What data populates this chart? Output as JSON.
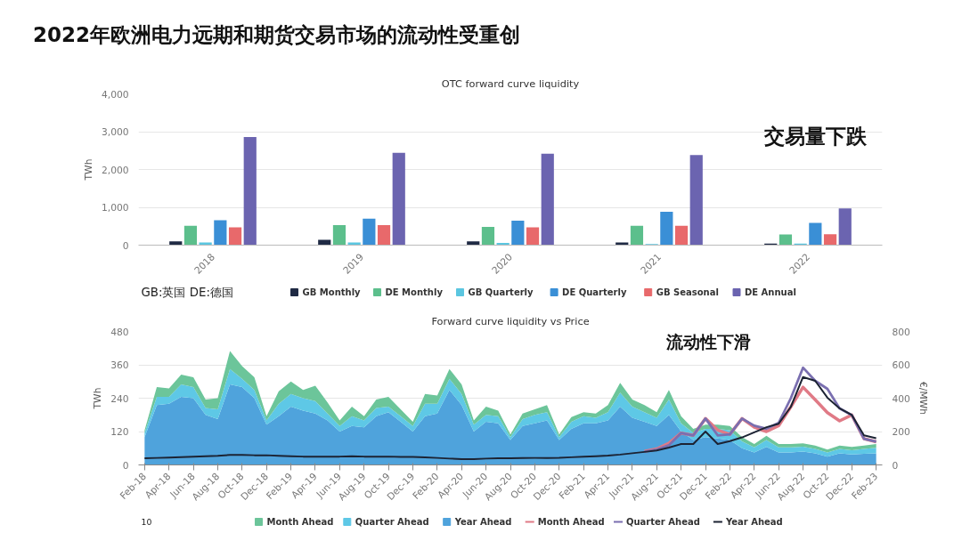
{
  "chart_data": [
    {
      "type": "bar",
      "title": "OTC forward curve liquidity",
      "ylabel": "TWh",
      "categories": [
        "2018",
        "2019",
        "2020",
        "2021",
        "2022"
      ],
      "series": [
        {
          "name": "GB Monthly",
          "color": "#1f2a44",
          "values": [
            100,
            140,
            100,
            70,
            40
          ]
        },
        {
          "name": "DE Monthly",
          "color": "#5cbf8c",
          "values": [
            510,
            530,
            480,
            510,
            280
          ]
        },
        {
          "name": "GB Quarterly",
          "color": "#5bc6e0",
          "values": [
            70,
            70,
            60,
            30,
            40
          ]
        },
        {
          "name": "DE Quarterly",
          "color": "#3a8fd6",
          "values": [
            660,
            700,
            650,
            880,
            590
          ]
        },
        {
          "name": "GB Seasonal",
          "color": "#e8696b",
          "values": [
            470,
            530,
            470,
            510,
            290
          ]
        },
        {
          "name": "DE Annual",
          "color": "#6b64b0",
          "values": [
            2860,
            2440,
            2420,
            2380,
            970
          ]
        }
      ],
      "ylim": [
        0,
        4000
      ],
      "yticks": [
        0,
        {
          "value": 1000,
          "label": "1,000"
        },
        {
          "value": 2000,
          "label": "2,000"
        },
        {
          "value": 3000,
          "label": "3,000"
        },
        {
          "value": 4000,
          "label": "4,000"
        }
      ],
      "grid": "y",
      "legend": "bottom",
      "annotations": [
        "2022年欧洲电力远期和期货交易市场的流动性受重创",
        "GB:英国  DE:德国",
        "交易量下跌"
      ]
    },
    {
      "type": "area",
      "stacked": true,
      "title": "Forward curve liquidity vs Price",
      "ylabel": "TWh",
      "y2label": "€/MWh",
      "categories": [
        "Feb-18",
        null,
        "Apr-18",
        null,
        "Jun-18",
        null,
        "Aug-18",
        null,
        "Oct-18",
        null,
        "Dec-18",
        null,
        "Feb-19",
        null,
        "Apr-19",
        null,
        "Jun-19",
        null,
        "Aug-19",
        null,
        "Oct-19",
        null,
        "Dec-19",
        null,
        "Feb-20",
        null,
        "Apr-20",
        null,
        "Jun-20",
        null,
        "Aug-20",
        null,
        "Oct-20",
        null,
        "Dec-20",
        null,
        "Feb-21",
        null,
        "Apr-21",
        null,
        "Jun-21",
        null,
        "Aug-21",
        null,
        "Oct-21",
        null,
        "Dec-21",
        null,
        "Feb-22",
        null,
        "Apr-22",
        null,
        "Jun-22",
        null,
        "Aug-22",
        null,
        "Oct-22",
        null,
        "Dec-22",
        null,
        "Feb-23"
      ],
      "series": [
        {
          "name": "Year Ahead",
          "type": "area",
          "color": "#4fa3dc",
          "values": [
            100,
            215,
            220,
            245,
            240,
            180,
            165,
            290,
            280,
            240,
            145,
            175,
            210,
            195,
            185,
            160,
            120,
            140,
            135,
            175,
            190,
            155,
            120,
            175,
            185,
            270,
            215,
            120,
            155,
            150,
            90,
            140,
            150,
            160,
            90,
            130,
            150,
            150,
            160,
            210,
            170,
            155,
            140,
            180,
            120,
            90,
            100,
            95,
            90,
            60,
            45,
            65,
            45,
            45,
            48,
            42,
            30,
            42,
            38,
            40,
            42
          ]
        },
        {
          "name": "Quarter Ahead",
          "type": "area",
          "color": "#5ec8e6",
          "values": [
            15,
            30,
            25,
            45,
            40,
            25,
            35,
            55,
            30,
            30,
            15,
            45,
            45,
            45,
            45,
            25,
            20,
            35,
            25,
            30,
            20,
            20,
            20,
            45,
            35,
            40,
            40,
            25,
            25,
            25,
            10,
            25,
            30,
            30,
            10,
            25,
            25,
            20,
            30,
            50,
            40,
            35,
            30,
            55,
            30,
            25,
            30,
            35,
            35,
            25,
            18,
            25,
            18,
            18,
            18,
            16,
            15,
            16,
            15,
            18,
            20
          ]
        },
        {
          "name": "Month Ahead",
          "type": "area",
          "color": "#6cc59a",
          "values": [
            10,
            35,
            30,
            35,
            35,
            30,
            40,
            65,
            45,
            45,
            15,
            45,
            45,
            30,
            55,
            40,
            20,
            35,
            15,
            30,
            35,
            25,
            15,
            35,
            30,
            35,
            35,
            15,
            30,
            20,
            10,
            20,
            20,
            25,
            10,
            17,
            15,
            15,
            25,
            35,
            25,
            25,
            20,
            35,
            25,
            15,
            15,
            15,
            15,
            15,
            12,
            15,
            12,
            12,
            12,
            12,
            10,
            12,
            12,
            12,
            13
          ]
        },
        {
          "name": "Month Ahead",
          "type": "line",
          "axis": "y2",
          "color": "#e07a86",
          "values": [
            null,
            null,
            null,
            null,
            null,
            null,
            null,
            null,
            null,
            null,
            null,
            null,
            null,
            null,
            null,
            null,
            null,
            null,
            null,
            null,
            null,
            null,
            null,
            null,
            null,
            null,
            null,
            null,
            null,
            null,
            null,
            null,
            null,
            null,
            null,
            null,
            null,
            null,
            null,
            null,
            null,
            82,
            96,
            130,
            191,
            177,
            278,
            209,
            183,
            278,
            226,
            200,
            235,
            348,
            466,
            391,
            313,
            264,
            299,
            157,
            139
          ]
        },
        {
          "name": "Quarter Ahead",
          "type": "line",
          "axis": "y2",
          "color": "#7a6fb0",
          "values": [
            null,
            null,
            null,
            null,
            null,
            null,
            null,
            null,
            null,
            null,
            null,
            null,
            null,
            null,
            null,
            null,
            null,
            null,
            null,
            null,
            null,
            null,
            null,
            null,
            null,
            null,
            null,
            null,
            null,
            null,
            null,
            null,
            null,
            null,
            null,
            null,
            null,
            null,
            null,
            null,
            null,
            80,
            92,
            118,
            191,
            177,
            278,
            177,
            183,
            278,
            235,
            217,
            252,
            400,
            583,
            504,
            456,
            339,
            299,
            157,
            139
          ]
        },
        {
          "name": "Year Ahead",
          "type": "line",
          "axis": "y2",
          "color": "#1c2333",
          "values": [
            40,
            42,
            44,
            47,
            49,
            52,
            55,
            60,
            60,
            58,
            58,
            55,
            52,
            50,
            50,
            50,
            50,
            52,
            50,
            50,
            50,
            48,
            48,
            45,
            42,
            38,
            35,
            35,
            38,
            40,
            40,
            41,
            42,
            42,
            43,
            46,
            49,
            52,
            56,
            62,
            70,
            78,
            87,
            104,
            125,
            125,
            200,
            125,
            143,
            165,
            195,
            226,
            247,
            348,
            527,
            504,
            403,
            339,
            299,
            177,
            160
          ]
        }
      ],
      "ylim": [
        0,
        480
      ],
      "yticks": [
        0,
        120,
        240,
        360,
        480
      ],
      "y2lim": [
        0,
        800
      ],
      "y2ticks": [
        0,
        200,
        400,
        600,
        800
      ],
      "grid": "y",
      "legend": "bottom",
      "annotations": [
        "流动性下滑",
        "10"
      ]
    }
  ]
}
